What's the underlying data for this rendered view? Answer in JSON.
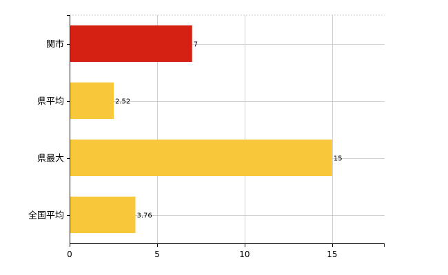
{
  "chart_data": {
    "type": "bar",
    "orientation": "horizontal",
    "categories": [
      "関市",
      "県平均",
      "県最大",
      "全国平均"
    ],
    "values": [
      7,
      2.52,
      15,
      3.76
    ],
    "data_labels": [
      "7",
      "2.52",
      "15",
      "3.76"
    ],
    "bar_colors": [
      "#d42113",
      "#f9c73a",
      "#f9c73a",
      "#f9c73a"
    ],
    "xlim": [
      0,
      18
    ],
    "xticks": [
      0,
      5,
      10,
      15
    ],
    "xtick_labels": [
      "0",
      "5",
      "10",
      "15"
    ],
    "grid": true,
    "legend": "none"
  }
}
